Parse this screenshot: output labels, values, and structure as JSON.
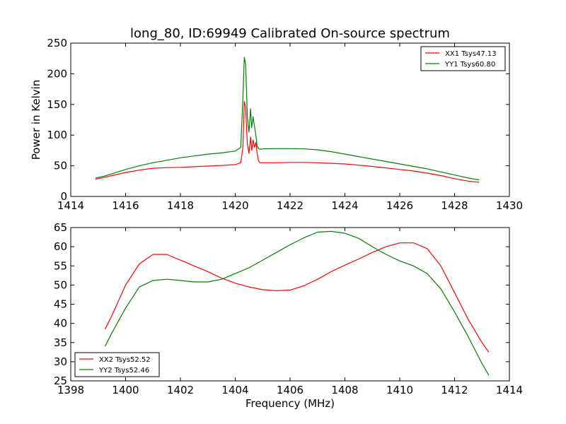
{
  "title": "long_80, ID:69949 Calibrated On-source spectrum",
  "chart_data": [
    {
      "type": "line",
      "title": "long_80, ID:69949 Calibrated On-source spectrum",
      "xlabel": "",
      "ylabel": "Power in Kelvin",
      "xlim": [
        1414,
        1430
      ],
      "ylim": [
        0,
        250
      ],
      "xticks": [
        "1414",
        "1416",
        "1418",
        "1420",
        "1422",
        "1424",
        "1426",
        "1428",
        "1430"
      ],
      "yticks": [
        "0",
        "50",
        "100",
        "150",
        "200",
        "250"
      ],
      "grid": false,
      "legend_position": "top-right",
      "series": [
        {
          "name": "XX1 Tsys47.13",
          "color": "#ff0000",
          "x": [
            1414.9,
            1415.2,
            1415.5,
            1416.0,
            1416.5,
            1417.0,
            1417.5,
            1418.0,
            1418.5,
            1419.0,
            1419.5,
            1420.0,
            1420.2,
            1420.28,
            1420.33,
            1420.38,
            1420.44,
            1420.5,
            1420.56,
            1420.6,
            1420.65,
            1420.7,
            1420.75,
            1420.8,
            1420.85,
            1420.9,
            1421.0,
            1421.5,
            1422.0,
            1422.5,
            1423.0,
            1423.5,
            1424.0,
            1424.5,
            1425.0,
            1425.5,
            1426.0,
            1426.5,
            1427.0,
            1427.5,
            1428.0,
            1428.5,
            1428.9
          ],
          "y": [
            28,
            31,
            34,
            39,
            43,
            46,
            47,
            47.5,
            48.5,
            49.5,
            50.5,
            52,
            55,
            80,
            155,
            145,
            85,
            70,
            97,
            75,
            92,
            80,
            88,
            70,
            58,
            55,
            55,
            55,
            55.5,
            55.5,
            55,
            54,
            53,
            51,
            49,
            46.5,
            44,
            41.5,
            38,
            34,
            29,
            25,
            23
          ]
        },
        {
          "name": "YY1 Tsys60.80",
          "color": "#008000",
          "x": [
            1414.9,
            1415.2,
            1415.5,
            1416.0,
            1416.5,
            1417.0,
            1417.5,
            1418.0,
            1418.5,
            1419.0,
            1419.5,
            1420.0,
            1420.2,
            1420.28,
            1420.33,
            1420.38,
            1420.44,
            1420.5,
            1420.56,
            1420.6,
            1420.65,
            1420.7,
            1420.75,
            1420.8,
            1420.85,
            1420.9,
            1421.0,
            1421.5,
            1422.0,
            1422.5,
            1423.0,
            1423.5,
            1424.0,
            1424.5,
            1425.0,
            1425.5,
            1426.0,
            1426.5,
            1427.0,
            1427.5,
            1428.0,
            1428.5,
            1428.9
          ],
          "y": [
            30,
            33,
            37,
            44,
            50,
            55,
            59,
            63,
            66,
            69,
            71,
            74,
            80,
            160,
            227,
            215,
            130,
            105,
            143,
            112,
            130,
            115,
            100,
            82,
            78,
            77,
            77.5,
            78,
            78,
            77.5,
            76,
            73,
            69,
            65,
            61,
            57,
            53,
            49,
            45,
            40,
            35,
            30,
            27
          ]
        }
      ]
    },
    {
      "type": "line",
      "title": "",
      "xlabel": "Frequency (MHz)",
      "ylabel": "",
      "xlim": [
        1398,
        1414
      ],
      "ylim": [
        25,
        65
      ],
      "xticks": [
        "1398",
        "1400",
        "1402",
        "1404",
        "1406",
        "1408",
        "1410",
        "1412",
        "1414"
      ],
      "yticks": [
        "25",
        "30",
        "35",
        "40",
        "45",
        "50",
        "55",
        "60",
        "65"
      ],
      "grid": false,
      "legend_position": "bottom-left",
      "series": [
        {
          "name": "XX2 Tsys52.52",
          "color": "#ff0000",
          "x": [
            1399.25,
            1399.5,
            1400.0,
            1400.5,
            1401.0,
            1401.5,
            1402.0,
            1402.5,
            1403.0,
            1403.5,
            1404.0,
            1404.5,
            1405.0,
            1405.5,
            1406.0,
            1406.5,
            1407.0,
            1407.5,
            1408.0,
            1408.5,
            1409.0,
            1409.5,
            1410.0,
            1410.5,
            1411.0,
            1411.5,
            1412.0,
            1412.5,
            1413.0,
            1413.25
          ],
          "y": [
            38.5,
            42,
            50,
            55.5,
            58,
            58,
            56.5,
            55,
            53.5,
            51.8,
            50.5,
            49.5,
            48.8,
            48.5,
            48.7,
            49.8,
            51.5,
            53.5,
            55.2,
            56.8,
            58.5,
            60,
            61,
            61,
            59.5,
            55,
            48,
            41,
            35,
            32.5
          ]
        },
        {
          "name": "YY2 Tsys52.46",
          "color": "#008000",
          "x": [
            1399.25,
            1399.5,
            1400.0,
            1400.5,
            1401.0,
            1401.5,
            1402.0,
            1402.5,
            1403.0,
            1403.5,
            1404.0,
            1404.5,
            1405.0,
            1405.5,
            1406.0,
            1406.5,
            1407.0,
            1407.5,
            1408.0,
            1408.5,
            1409.0,
            1409.5,
            1410.0,
            1410.5,
            1411.0,
            1411.5,
            1412.0,
            1412.5,
            1413.0,
            1413.25
          ],
          "y": [
            34,
            37.5,
            44,
            49.5,
            51.2,
            51.5,
            51.2,
            50.8,
            50.8,
            51.5,
            53,
            54.5,
            56.5,
            58.5,
            60.5,
            62.3,
            63.8,
            64,
            63.5,
            62.2,
            60,
            58,
            56.3,
            55,
            53,
            49,
            43,
            36.5,
            29.5,
            26.5
          ]
        }
      ]
    }
  ]
}
